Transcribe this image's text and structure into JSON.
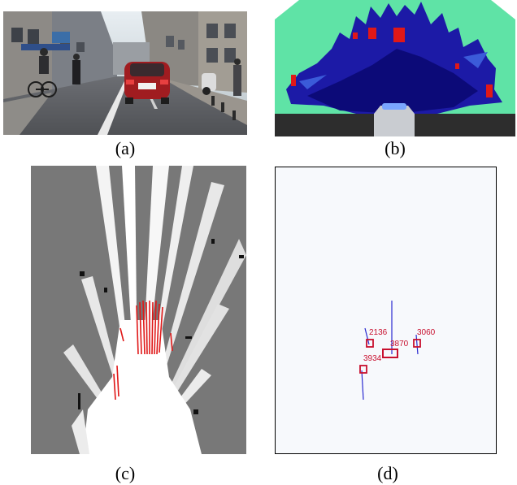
{
  "captions": [
    "(a)",
    "(b)",
    "(c)",
    "(d)"
  ],
  "track_labels": [
    "2136",
    "3060",
    "3870",
    "3934"
  ],
  "colors": {
    "road": "#5e6066",
    "sky": "#c7d2d8",
    "grid_low": "#1c1aa6",
    "grid_mid": "#5fe3a6",
    "grid_occupied": "#e01818",
    "occupancy_gray": "#787878",
    "track_red": "#c8102e",
    "track_blue": "#2a2ad0"
  },
  "icons": {
    "street_photo": "street-scene-image",
    "polar_grid": "occupancy-colormap-image",
    "gray_grid": "grayscale-occupancy-image",
    "tracks": "tracked-objects-plot"
  }
}
